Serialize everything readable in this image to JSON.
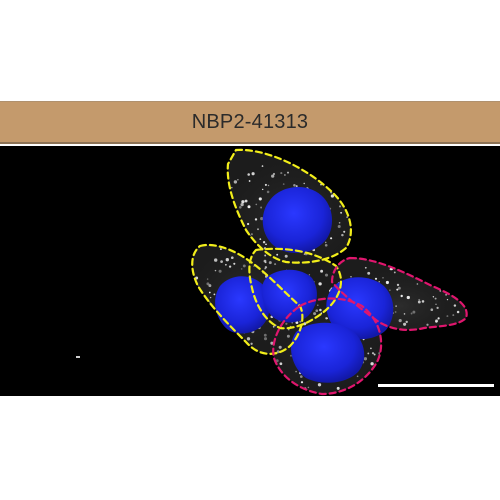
{
  "header": {
    "label": "NBP2-41313",
    "background_color": "#c49a6c"
  },
  "micrograph": {
    "background_color": "#000000",
    "nucleus_stain_color": "#1f2ee6",
    "puncta_color": "#f2f2f2",
    "outline_colors": [
      "#f2ee1a",
      "#e0166e"
    ],
    "cell_outline_count": 5,
    "scale_bar_color": "#ffffff"
  }
}
